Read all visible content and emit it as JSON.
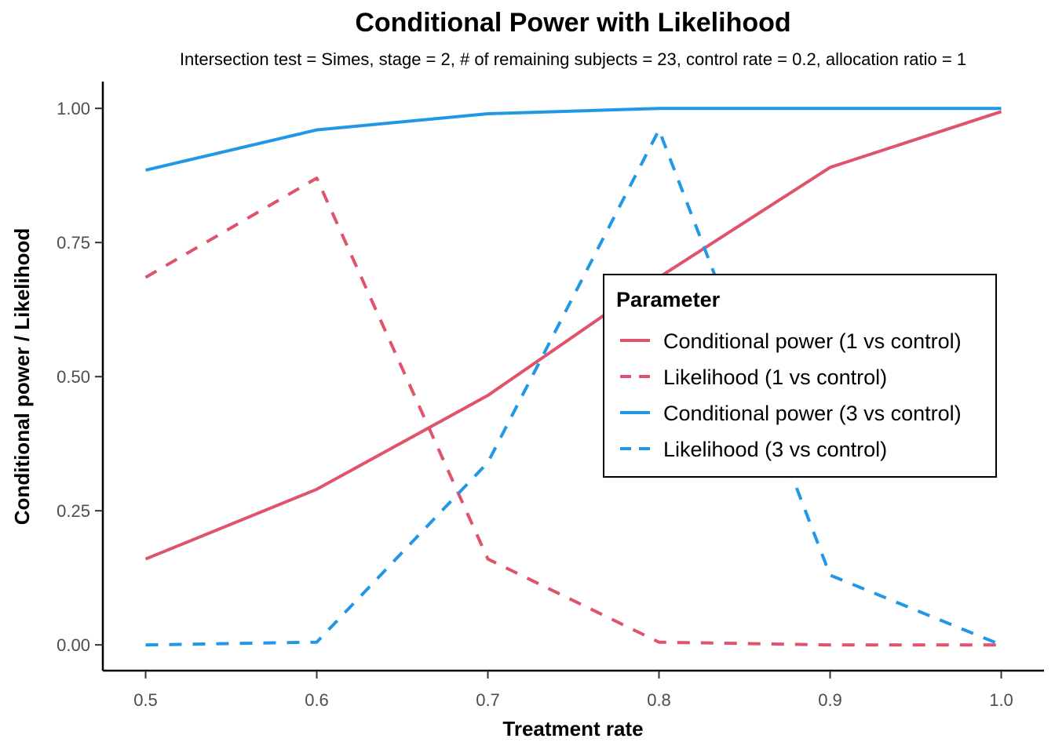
{
  "chart_data": {
    "type": "line",
    "title": "Conditional Power with Likelihood",
    "subtitle": "Intersection test = Simes, stage = 2, # of remaining subjects = 23, control rate = 0.2, allocation ratio = 1",
    "xlabel": "Treatment rate",
    "ylabel": "Conditional power / Likelihood",
    "x": [
      0.5,
      0.6,
      0.7,
      0.8,
      0.9,
      1.0
    ],
    "x_tick_labels": [
      "0.5",
      "0.6",
      "0.7",
      "0.8",
      "0.9",
      "1.0"
    ],
    "y_ticks": [
      0.0,
      0.25,
      0.5,
      0.75,
      1.0
    ],
    "y_tick_labels": [
      "0.00",
      "0.25",
      "0.50",
      "0.75",
      "1.00"
    ],
    "xlim": [
      0.475,
      1.025
    ],
    "ylim": [
      -0.048,
      1.05
    ],
    "grid": false,
    "legend": {
      "title": "Parameter",
      "placement": "inside-right"
    },
    "series": [
      {
        "name": "Conditional power (1 vs control)",
        "color": "#DF536B",
        "dash": "solid",
        "values": [
          0.16,
          0.29,
          0.465,
          0.685,
          0.89,
          0.994
        ]
      },
      {
        "name": "Likelihood (1 vs control)",
        "color": "#DF536B",
        "dash": "dashed",
        "values": [
          0.685,
          0.87,
          0.16,
          0.005,
          0.0,
          0.0
        ]
      },
      {
        "name": "Conditional power (3 vs control)",
        "color": "#2297E6",
        "dash": "solid",
        "values": [
          0.885,
          0.96,
          0.99,
          1.0,
          1.0,
          1.0
        ]
      },
      {
        "name": "Likelihood (3 vs control)",
        "color": "#2297E6",
        "dash": "dashed",
        "values": [
          0.0,
          0.005,
          0.34,
          0.96,
          0.13,
          0.0
        ]
      }
    ]
  }
}
